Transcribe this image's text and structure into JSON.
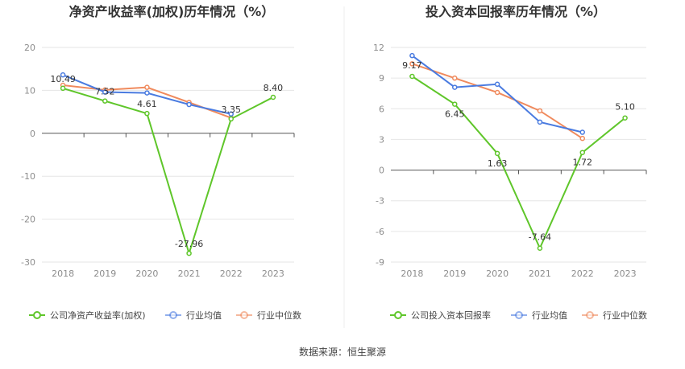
{
  "source_text": "数据来源：恒生聚源",
  "chart_data": [
    {
      "type": "line",
      "title": "净资产收益率(加权)历年情况（%）",
      "categories": [
        "2018",
        "2019",
        "2020",
        "2021",
        "2022",
        "2023"
      ],
      "ylim": [
        -30,
        20
      ],
      "yticks": [
        20,
        10,
        0,
        -10,
        -20,
        -30
      ],
      "grid": true,
      "legend_position": "bottom",
      "series": [
        {
          "name": "公司净资产收益率(加权)",
          "color": "#5fc62a",
          "values": [
            10.49,
            7.52,
            4.61,
            -27.96,
            3.35,
            8.4
          ],
          "labels": [
            "10.49",
            "7.52",
            "4.61",
            "-27.96",
            "3.35",
            "8.40"
          ]
        },
        {
          "name": "行业均值",
          "color": "#4a7be0",
          "values": [
            13.6,
            9.6,
            9.4,
            6.7,
            4.5,
            null
          ],
          "labels": []
        },
        {
          "name": "行业中位数",
          "color": "#f08a5d",
          "values": [
            11.2,
            10.1,
            10.7,
            7.2,
            3.6,
            null
          ],
          "labels": []
        }
      ]
    },
    {
      "type": "line",
      "title": "投入资本回报率历年情况（%）",
      "categories": [
        "2018",
        "2019",
        "2020",
        "2021",
        "2022",
        "2023"
      ],
      "ylim": [
        -9,
        12
      ],
      "yticks": [
        12,
        9,
        6,
        3,
        0,
        -3,
        -6,
        -9
      ],
      "grid": true,
      "legend_position": "bottom",
      "series": [
        {
          "name": "公司投入资本回报率",
          "color": "#5fc62a",
          "values": [
            9.17,
            6.45,
            1.63,
            -7.64,
            1.72,
            5.1
          ],
          "labels": [
            "9.17",
            "6.45",
            "1.63",
            "-7.64",
            "1.72",
            "5.10"
          ]
        },
        {
          "name": "行业均值",
          "color": "#4a7be0",
          "values": [
            11.2,
            8.1,
            8.4,
            4.7,
            3.7,
            null
          ],
          "labels": []
        },
        {
          "name": "行业中位数",
          "color": "#f08a5d",
          "values": [
            10.4,
            9.0,
            7.6,
            5.8,
            3.1,
            null
          ],
          "labels": []
        }
      ]
    }
  ]
}
